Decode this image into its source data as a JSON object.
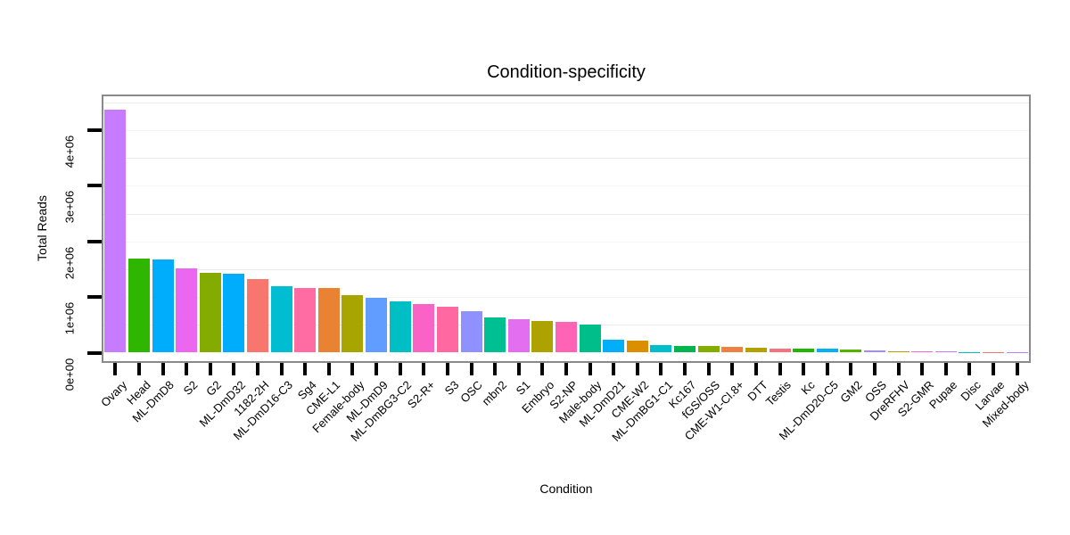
{
  "title": "Condition-specificity",
  "chart_data": {
    "type": "bar",
    "title": "Condition-specificity",
    "xlabel": "Condition",
    "ylabel": "Total Reads",
    "ylim": [
      0,
      4600000
    ],
    "grid": "horizontal, faint light-gray on white panel",
    "legend": "none",
    "sorted": "descending by value",
    "yticks": [
      {
        "value": 0,
        "label": "0e+00"
      },
      {
        "value": 1000000,
        "label": "1e+06"
      },
      {
        "value": 2000000,
        "label": "2e+06"
      },
      {
        "value": 3000000,
        "label": "3e+06"
      },
      {
        "value": 4000000,
        "label": "4e+06"
      }
    ],
    "categories": [
      "Ovary",
      "Head",
      "ML-DmD8",
      "S2",
      "G2",
      "ML-DmD32",
      "1182-2H",
      "ML-DmD16-C3",
      "Sg4",
      "CME-L1",
      "Female-body",
      "ML-DmD9",
      "ML-DmBG3-C2",
      "S2-R+",
      "S3",
      "OSC",
      "mbn2",
      "S1",
      "Embryo",
      "S2-NP",
      "Male-body",
      "ML-DmD21",
      "CME-W2",
      "ML-DmBG1-C1",
      "Kc167",
      "fGS/OSS",
      "CME-W1-Cl.8+",
      "DTT",
      "Testis",
      "Kc",
      "ML-DmD20-C5",
      "GM2",
      "OSS",
      "DreRFHV",
      "S2-GMR",
      "Pupae",
      "Disc",
      "Larvae",
      "Mixed-body"
    ],
    "values": [
      4370000,
      1690000,
      1680000,
      1510000,
      1430000,
      1420000,
      1330000,
      1190000,
      1160000,
      1155000,
      1030000,
      990000,
      920000,
      870000,
      830000,
      750000,
      640000,
      600000,
      570000,
      550000,
      510000,
      230000,
      210000,
      140000,
      125000,
      124000,
      110000,
      95000,
      75000,
      70000,
      65000,
      64000,
      43000,
      32000,
      31000,
      27000,
      6000,
      4000,
      3000
    ],
    "bar_colors": [
      "#C77CFF",
      "#2FB600",
      "#00ACFC",
      "#EC67F0",
      "#84AC00",
      "#00ACFC",
      "#F8766D",
      "#00BDD2",
      "#FF6BA2",
      "#EA8331",
      "#A8A400",
      "#619CFF",
      "#00BFC4",
      "#FA62C6",
      "#FF68A1",
      "#8F91FF",
      "#00BF92",
      "#E36EF0",
      "#AEA200",
      "#FF63B6",
      "#00BE8A",
      "#00AEFA",
      "#DB8E00",
      "#00BECC",
      "#00B44E",
      "#84AD00",
      "#EE8044",
      "#B4A000",
      "#F8717E",
      "#21B700",
      "#00B2F5",
      "#52B400",
      "#9F8CFF",
      "#C09B00",
      "#FF64CF",
      "#CE78FF",
      "#00BFC4",
      "#F8766D",
      "#C77CFF"
    ]
  }
}
